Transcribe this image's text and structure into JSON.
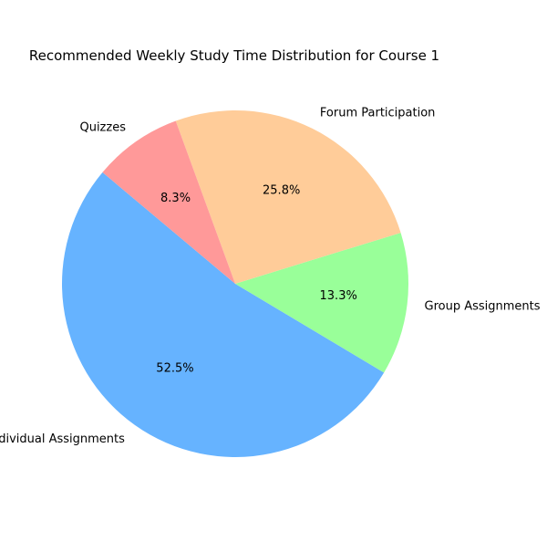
{
  "chart_data": {
    "type": "pie",
    "title": "Recommended Weekly Study Time Distribution for Course 1",
    "categories": [
      "Individual Assignments",
      "Group Assignments",
      "Forum Participation",
      "Quizzes"
    ],
    "values": [
      52.5,
      13.3,
      25.8,
      8.3
    ],
    "value_labels": [
      "52.5%",
      "13.3%",
      "25.8%",
      "8.3%"
    ],
    "colors": [
      "#66b3ff",
      "#99ff99",
      "#ffcc99",
      "#ff9999"
    ],
    "start_angle_deg": 140,
    "direction": "counterclockwise",
    "legend": "none"
  }
}
